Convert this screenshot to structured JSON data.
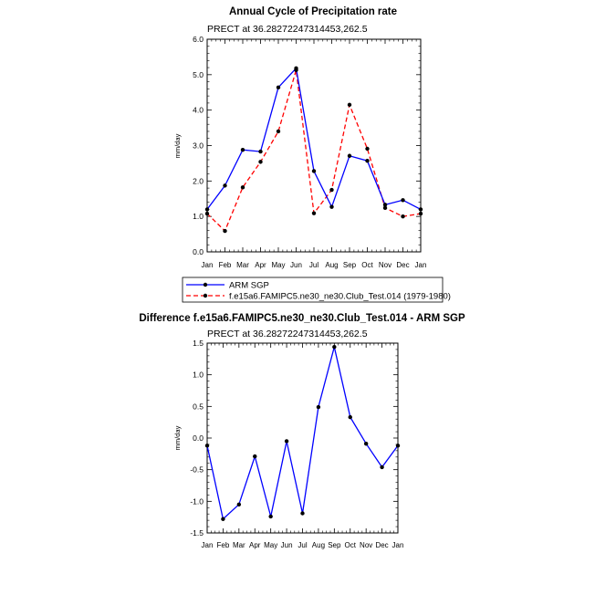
{
  "chart_data": [
    {
      "type": "line",
      "title": "Annual Cycle of Precipitation rate",
      "subtitle": "PRECT at 36.28272247314453,262.5",
      "xlabel": "",
      "ylabel": "mm/day",
      "categories": [
        "Jan",
        "Feb",
        "Mar",
        "Apr",
        "May",
        "Jun",
        "Jul",
        "Aug",
        "Sep",
        "Oct",
        "Nov",
        "Dec",
        "Jan"
      ],
      "ylim": [
        0,
        6
      ],
      "yticks": [
        "0.0",
        "1.0",
        "2.0",
        "3.0",
        "4.0",
        "5.0",
        "6.0"
      ],
      "series": [
        {
          "name": "ARM SGP",
          "color": "#0000ff",
          "dash": "solid",
          "values": [
            1.2,
            1.87,
            2.88,
            2.83,
            4.64,
            5.18,
            2.28,
            1.27,
            2.71,
            2.57,
            1.33,
            1.46,
            1.2
          ]
        },
        {
          "name": "f.e15a6.FAMIPC5.ne30_ne30.Club_Test.014 (1979-1980)",
          "color": "#ff0000",
          "dash": "dashed",
          "values": [
            1.08,
            0.59,
            1.82,
            2.54,
            3.4,
            5.13,
            1.09,
            1.75,
            4.15,
            2.91,
            1.24,
            1.0,
            1.08
          ]
        }
      ],
      "legend_position": "bottom"
    },
    {
      "type": "line",
      "title": "Difference f.e15a6.FAMIPC5.ne30_ne30.Club_Test.014 - ARM SGP",
      "subtitle": "PRECT at 36.28272247314453,262.5",
      "xlabel": "",
      "ylabel": "mm/day",
      "categories": [
        "Jan",
        "Feb",
        "Mar",
        "Apr",
        "May",
        "Jun",
        "Jul",
        "Aug",
        "Sep",
        "Oct",
        "Nov",
        "Dec",
        "Jan"
      ],
      "ylim": [
        -1.5,
        1.5
      ],
      "yticks": [
        "-1.5",
        "-1.0",
        "-0.5",
        "0.0",
        "0.5",
        "1.0",
        "1.5"
      ],
      "series": [
        {
          "name": "Difference",
          "color": "#0000ff",
          "dash": "solid",
          "values": [
            -0.12,
            -1.28,
            -1.05,
            -0.29,
            -1.24,
            -0.05,
            -1.19,
            0.49,
            1.44,
            0.33,
            -0.09,
            -0.46,
            -0.12
          ]
        }
      ]
    }
  ]
}
